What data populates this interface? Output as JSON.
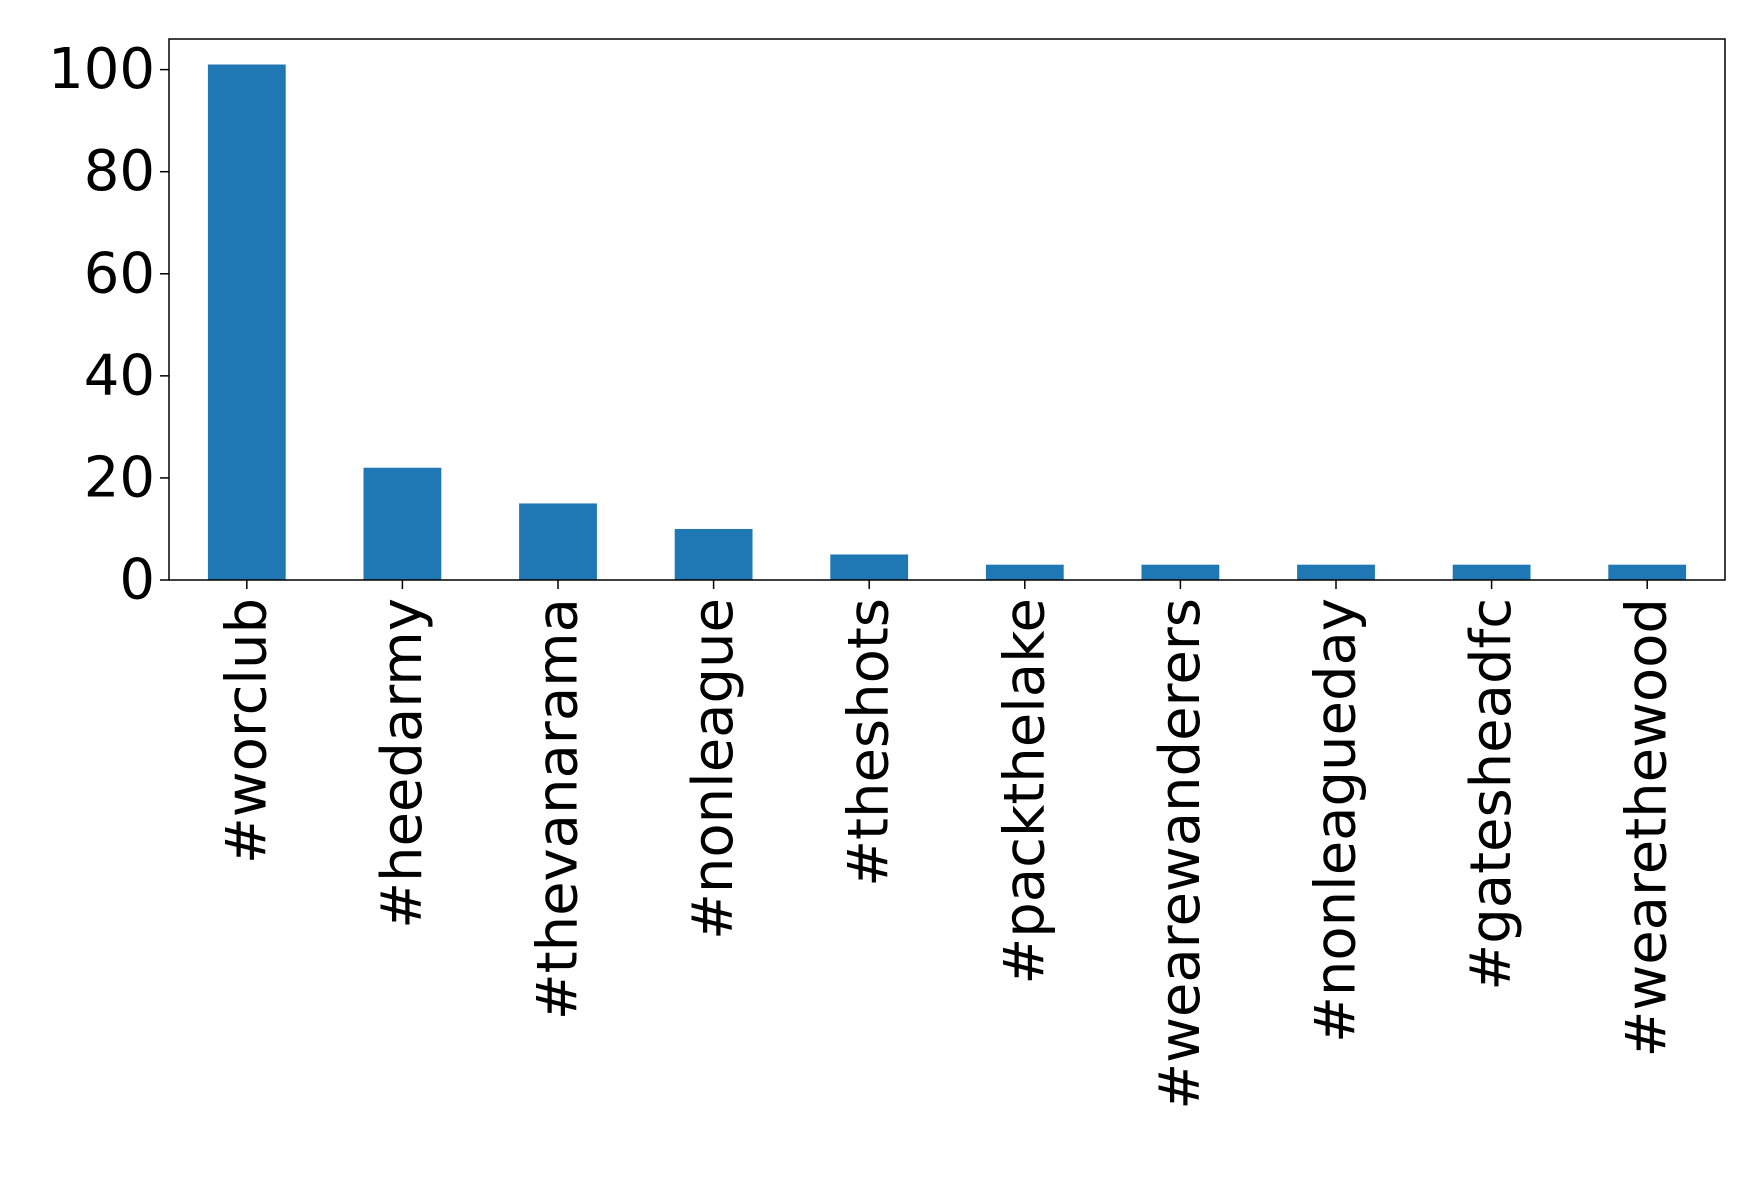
{
  "chart_data": {
    "type": "bar",
    "title": "",
    "xlabel": "",
    "ylabel": "",
    "categories": [
      "#worclub",
      "#heedarmy",
      "#thevanarama",
      "#nonleague",
      "#theshots",
      "#packthelake",
      "#wearewanderers",
      "#nonleagueday",
      "#gatesheadfc",
      "#wearethewood"
    ],
    "values": [
      101,
      22,
      15,
      10,
      5,
      3,
      3,
      3,
      3,
      3
    ],
    "ylim": [
      0,
      106
    ],
    "yticks": [
      0,
      20,
      40,
      60,
      80,
      100
    ],
    "grid": false,
    "legend": false,
    "bar_color": "#1f77b4"
  }
}
